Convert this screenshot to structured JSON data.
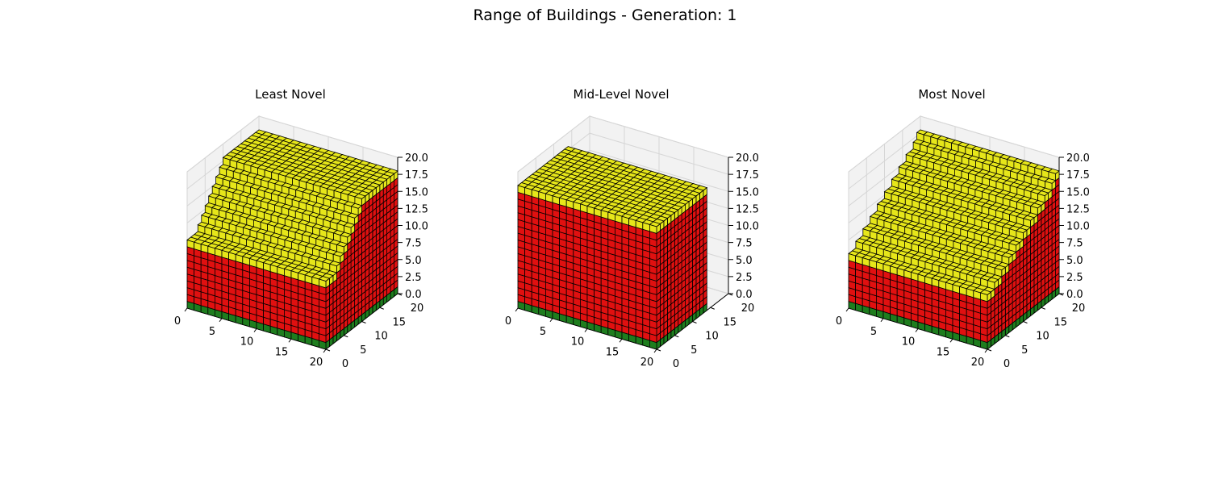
{
  "figure_title": "Range of Buildings - Generation: 1",
  "colors": {
    "ground": "#1e7d1e",
    "wall": "#e01010",
    "roof": "#e6e61a",
    "edge": "#000000",
    "pane": "#f2f2f2",
    "grid": "#d6d6d6"
  },
  "chart_data": [
    {
      "type": "voxel-3d",
      "title": "Least Novel",
      "xlim": [
        0,
        20
      ],
      "ylim": [
        0,
        20
      ],
      "zlim": [
        0,
        20
      ],
      "x_ticks": [
        "0",
        "5",
        "10",
        "15",
        "20"
      ],
      "y_ticks": [
        "0",
        "5",
        "10",
        "15",
        "20"
      ],
      "z_ticks": [
        "0.0",
        "2.5",
        "5.0",
        "7.5",
        "10.0",
        "12.5",
        "15.0",
        "17.5",
        "20.0"
      ],
      "legend": "none",
      "grid": true,
      "profile": [
        10,
        10,
        10,
        11,
        12,
        13,
        14,
        15,
        16,
        17,
        18,
        18,
        18,
        18,
        18,
        18,
        18,
        18,
        18,
        18
      ]
    },
    {
      "type": "voxel-3d",
      "title": "Mid-Level Novel",
      "xlim": [
        0,
        20
      ],
      "ylim": [
        0,
        20
      ],
      "zlim": [
        0,
        20
      ],
      "x_ticks": [
        "0",
        "5",
        "10",
        "15",
        "20"
      ],
      "y_ticks": [
        "0",
        "5",
        "10",
        "15",
        "20"
      ],
      "z_ticks": [
        "0.0",
        "2.5",
        "5.0",
        "7.5",
        "10.0",
        "12.5",
        "15.0",
        "17.5",
        "20.0"
      ],
      "legend": "none",
      "grid": true,
      "profile": [
        18,
        18,
        18,
        18,
        18,
        18,
        18,
        18,
        18,
        18,
        18,
        18,
        18,
        18,
        0,
        0,
        0,
        0,
        0,
        0
      ]
    },
    {
      "type": "voxel-3d",
      "title": "Most Novel",
      "xlim": [
        0,
        20
      ],
      "ylim": [
        0,
        20
      ],
      "zlim": [
        0,
        20
      ],
      "x_ticks": [
        "0",
        "5",
        "10",
        "15",
        "20"
      ],
      "y_ticks": [
        "0",
        "5",
        "10",
        "15",
        "20"
      ],
      "z_ticks": [
        "0.0",
        "2.5",
        "5.0",
        "7.5",
        "10.0",
        "12.5",
        "15.0",
        "17.5",
        "20.0"
      ],
      "legend": "none",
      "grid": true,
      "profile": [
        8,
        8,
        9,
        9,
        10,
        10,
        11,
        11,
        12,
        12,
        13,
        13,
        14,
        14,
        15,
        15,
        16,
        16,
        17,
        18
      ]
    }
  ]
}
